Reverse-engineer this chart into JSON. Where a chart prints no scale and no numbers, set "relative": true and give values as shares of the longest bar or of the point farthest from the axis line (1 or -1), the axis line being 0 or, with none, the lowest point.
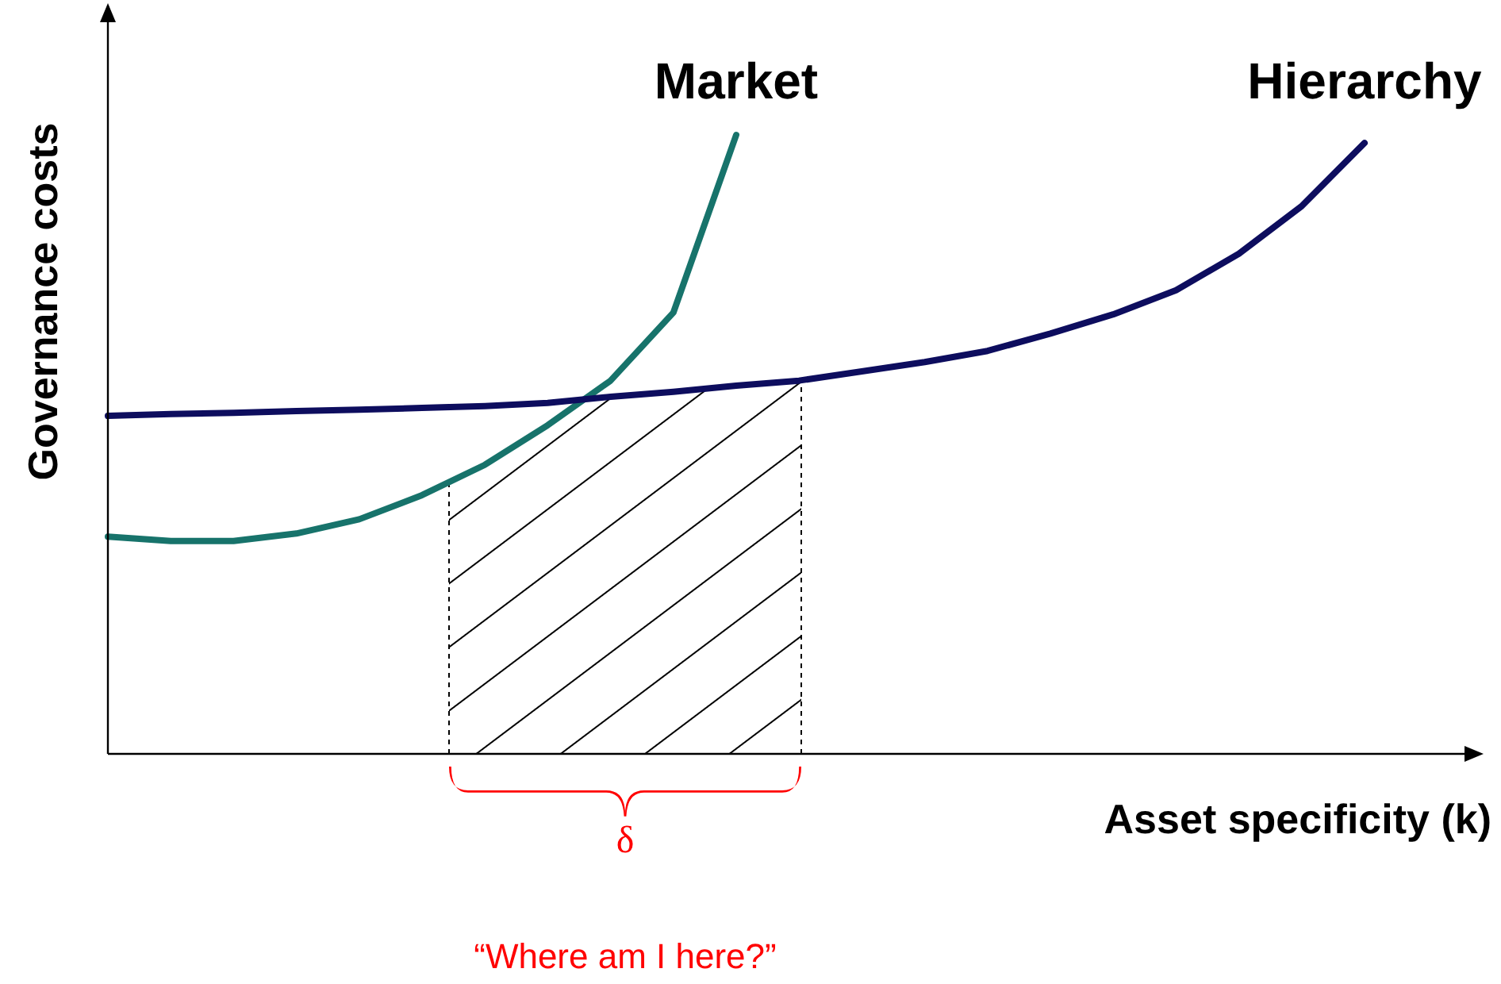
{
  "chart_data": {
    "type": "line",
    "relative": true,
    "xlabel": "Asset specificity (k)",
    "ylabel": "Governance costs",
    "categories": [
      null,
      null,
      null,
      null,
      null,
      null,
      null,
      null,
      null,
      null,
      null,
      null,
      null,
      null,
      null,
      null,
      null,
      null,
      null,
      null,
      null
    ],
    "series": [
      {
        "name": "Market",
        "color": "#17736b",
        "values": [
          0.351,
          0.344,
          0.344,
          0.356,
          0.379,
          0.418,
          0.467,
          0.531,
          0.603,
          0.713,
          1.0,
          null,
          null,
          null,
          null,
          null,
          null,
          null,
          null,
          null,
          null
        ]
      },
      {
        "name": "Hierarchy",
        "color": "#0d0d5e",
        "values": [
          0.546,
          0.549,
          0.551,
          0.554,
          0.556,
          0.559,
          0.562,
          0.567,
          0.577,
          0.585,
          0.595,
          0.603,
          0.618,
          0.633,
          0.651,
          0.679,
          0.71,
          0.749,
          0.808,
          0.885,
          0.987
        ]
      }
    ],
    "annotations": [
      "δ",
      "“Where am I here?”"
    ]
  }
}
